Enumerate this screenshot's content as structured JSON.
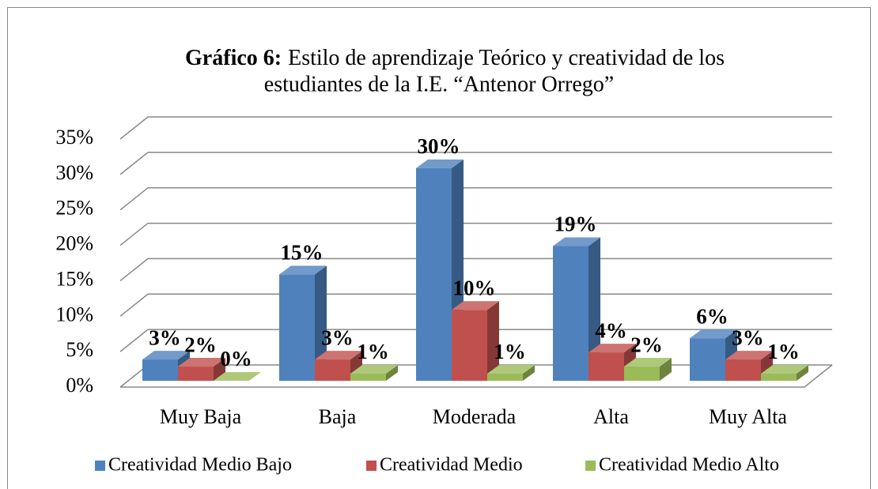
{
  "chart_data": {
    "type": "bar3d",
    "title_label": "Gráfico 6:",
    "title": [
      "Estilo de aprendizaje Teórico y creatividad de los",
      "estudiantes de la I.E. “Antenor Orrego”"
    ],
    "categories": [
      "Muy Baja",
      "Baja",
      "Moderada",
      "Alta",
      "Muy Alta"
    ],
    "series": [
      {
        "name": "Creatividad Medio Bajo",
        "color": "#4f81bd",
        "values": [
          3,
          15,
          30,
          19,
          6
        ],
        "value_labels": [
          "3%",
          "15%",
          "30%",
          "19%",
          "6%"
        ]
      },
      {
        "name": "Creatividad Medio",
        "color": "#c0504d",
        "values": [
          2,
          3,
          10,
          4,
          3
        ],
        "value_labels": [
          "2%",
          "3%",
          "10%",
          "4%",
          "3%"
        ]
      },
      {
        "name": "Creatividad Medio Alto",
        "color": "#9bbb59",
        "values": [
          0,
          1,
          1,
          2,
          1
        ],
        "value_labels": [
          "0%",
          "1%",
          "1%",
          "2%",
          "1%"
        ]
      }
    ],
    "ylim": [
      0,
      35
    ],
    "yticks": [
      {
        "value": 0,
        "label": "0%"
      },
      {
        "value": 5,
        "label": "5%"
      },
      {
        "value": 10,
        "label": "10%"
      },
      {
        "value": 15,
        "label": "15%"
      },
      {
        "value": 20,
        "label": "20%"
      },
      {
        "value": 25,
        "label": "25%"
      },
      {
        "value": 30,
        "label": "30%"
      },
      {
        "value": 35,
        "label": "35%"
      }
    ],
    "grid": true,
    "legend": "bottom"
  }
}
